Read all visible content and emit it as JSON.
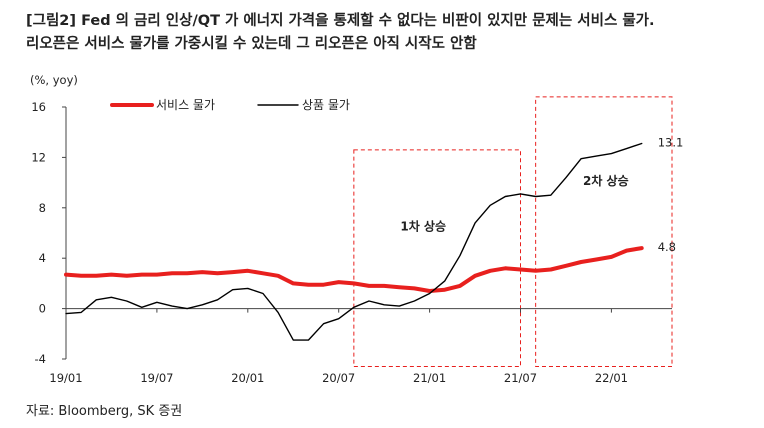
{
  "header": {
    "title_line1": "[그림2] Fed 의 금리 인상/QT 가 에너지 가격을 통제할 수 없다는 비판이 있지만 문제는 서비스 물가.",
    "title_line2": "리오픈은 서비스 물가를 가중시킬 수 있는데 그 리오픈은 아직 시작도 안함"
  },
  "footer": {
    "source": "자료: Bloomberg, SK 증권"
  },
  "chart_data": {
    "type": "line",
    "unit_label": "(%, yoy)",
    "ylim": [
      -4,
      16
    ],
    "yticks": [
      -4,
      0,
      4,
      8,
      12,
      16
    ],
    "xlim": [
      "2019-01",
      "2022-05"
    ],
    "xticks": [
      {
        "value": "2019-01",
        "label": "19/01"
      },
      {
        "value": "2019-07",
        "label": "19/07"
      },
      {
        "value": "2020-01",
        "label": "20/01"
      },
      {
        "value": "2020-07",
        "label": "20/07"
      },
      {
        "value": "2021-01",
        "label": "21/01"
      },
      {
        "value": "2021-07",
        "label": "21/07"
      },
      {
        "value": "2022-01",
        "label": "22/01"
      }
    ],
    "legend_position": "top-left",
    "x": [
      "2019-01",
      "2019-02",
      "2019-03",
      "2019-04",
      "2019-05",
      "2019-06",
      "2019-07",
      "2019-08",
      "2019-09",
      "2019-10",
      "2019-11",
      "2019-12",
      "2020-01",
      "2020-02",
      "2020-03",
      "2020-04",
      "2020-05",
      "2020-06",
      "2020-07",
      "2020-08",
      "2020-09",
      "2020-10",
      "2020-11",
      "2020-12",
      "2021-01",
      "2021-02",
      "2021-03",
      "2021-04",
      "2021-05",
      "2021-06",
      "2021-07",
      "2021-08",
      "2021-09",
      "2021-10",
      "2021-11",
      "2021-12",
      "2022-01",
      "2022-02",
      "2022-03"
    ],
    "series": [
      {
        "name": "서비스 물가",
        "color": "#e8201e",
        "values": [
          2.7,
          2.6,
          2.6,
          2.7,
          2.6,
          2.7,
          2.7,
          2.8,
          2.8,
          2.9,
          2.8,
          2.9,
          3.0,
          2.8,
          2.6,
          2.0,
          1.9,
          1.9,
          2.1,
          2.0,
          1.8,
          1.8,
          1.7,
          1.6,
          1.4,
          1.5,
          1.8,
          2.6,
          3.0,
          3.2,
          3.1,
          3.0,
          3.1,
          3.4,
          3.7,
          3.9,
          4.1,
          4.6,
          4.8
        ]
      },
      {
        "name": "상품 물가",
        "color": "#000000",
        "values": [
          -0.4,
          -0.3,
          0.7,
          0.9,
          0.6,
          0.1,
          0.5,
          0.2,
          0.0,
          0.3,
          0.7,
          1.5,
          1.6,
          1.2,
          -0.3,
          -2.5,
          -2.5,
          -1.2,
          -0.8,
          0.1,
          0.6,
          0.3,
          0.2,
          0.6,
          1.2,
          2.2,
          4.2,
          6.8,
          8.2,
          8.9,
          9.1,
          8.9,
          9.0,
          10.4,
          11.9,
          12.1,
          12.3,
          12.7,
          13.1
        ]
      }
    ],
    "end_labels": [
      {
        "series": "상품 물가",
        "text": "13.1"
      },
      {
        "series": "서비스 물가",
        "text": "4.8"
      }
    ],
    "annotations": [
      {
        "text": "1차 상승",
        "x_start": "2020-08",
        "x_end": "2021-07",
        "y_range": [
          -4.6,
          12.6
        ]
      },
      {
        "text": "2차 상승",
        "x_start": "2021-08",
        "x_end": "2022-05",
        "y_range": [
          -4.6,
          16.8
        ]
      }
    ]
  }
}
